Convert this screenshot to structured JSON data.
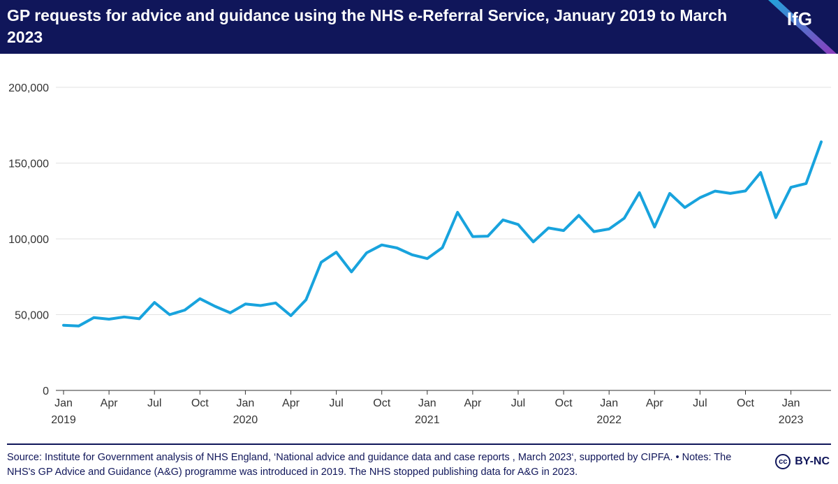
{
  "header": {
    "title": "GP requests for advice and guidance using the NHS e-Referral Service, January 2019 to March 2023",
    "logo": "IfG"
  },
  "chart_data": {
    "type": "line",
    "title": "GP requests for advice and guidance using the NHS e-Referral Service, January 2019 to March 2023",
    "xlabel": "",
    "ylabel": "",
    "ylim": [
      0,
      200000
    ],
    "yticks": [
      0,
      50000,
      100000,
      150000,
      200000
    ],
    "ytick_labels": [
      "0",
      "50,000",
      "100,000",
      "150,000",
      "200,000"
    ],
    "grid": "horizontal",
    "x_tick_labels": [
      {
        "month": "Jan",
        "year": "2019",
        "index": 0
      },
      {
        "month": "Apr",
        "year": "",
        "index": 3
      },
      {
        "month": "Jul",
        "year": "",
        "index": 6
      },
      {
        "month": "Oct",
        "year": "",
        "index": 9
      },
      {
        "month": "Jan",
        "year": "2020",
        "index": 12
      },
      {
        "month": "Apr",
        "year": "",
        "index": 15
      },
      {
        "month": "Jul",
        "year": "",
        "index": 18
      },
      {
        "month": "Oct",
        "year": "",
        "index": 21
      },
      {
        "month": "Jan",
        "year": "2021",
        "index": 24
      },
      {
        "month": "Apr",
        "year": "",
        "index": 27
      },
      {
        "month": "Jul",
        "year": "",
        "index": 30
      },
      {
        "month": "Oct",
        "year": "",
        "index": 33
      },
      {
        "month": "Jan",
        "year": "2022",
        "index": 36
      },
      {
        "month": "Apr",
        "year": "",
        "index": 39
      },
      {
        "month": "Jul",
        "year": "",
        "index": 42
      },
      {
        "month": "Oct",
        "year": "",
        "index": 45
      },
      {
        "month": "Jan",
        "year": "2023",
        "index": 48
      }
    ],
    "x": [
      "2019-01",
      "2019-02",
      "2019-03",
      "2019-04",
      "2019-05",
      "2019-06",
      "2019-07",
      "2019-08",
      "2019-09",
      "2019-10",
      "2019-11",
      "2019-12",
      "2020-01",
      "2020-02",
      "2020-03",
      "2020-04",
      "2020-05",
      "2020-06",
      "2020-07",
      "2020-08",
      "2020-09",
      "2020-10",
      "2020-11",
      "2020-12",
      "2021-01",
      "2021-02",
      "2021-03",
      "2021-04",
      "2021-05",
      "2021-06",
      "2021-07",
      "2021-08",
      "2021-09",
      "2021-10",
      "2021-11",
      "2021-12",
      "2022-01",
      "2022-02",
      "2022-03",
      "2022-04",
      "2022-05",
      "2022-06",
      "2022-07",
      "2022-08",
      "2022-09",
      "2022-10",
      "2022-11",
      "2022-12",
      "2023-01",
      "2023-02",
      "2023-03"
    ],
    "series": [
      {
        "name": "",
        "color": "#18a3dd",
        "values": [
          43000,
          42500,
          48000,
          47000,
          48500,
          47300,
          58000,
          50000,
          53000,
          60500,
          55500,
          51200,
          57000,
          56000,
          57700,
          49300,
          59800,
          84500,
          91200,
          78200,
          90800,
          96000,
          94000,
          89500,
          87000,
          94200,
          117500,
          101500,
          101800,
          112500,
          109500,
          98000,
          107200,
          105500,
          115500,
          104800,
          106500,
          113600,
          130500,
          107800,
          130000,
          120700,
          127200,
          131500,
          130000,
          131600,
          143800,
          114000,
          134000,
          136500,
          164000
        ]
      }
    ]
  },
  "footer": {
    "source": "Source: Institute for Government analysis of NHS England, ‘National advice and guidance data and case reports , March 2023‘, supported by CIPFA. • Notes: The NHS's GP Advice and Guidance (A&G) programme was introduced in 2019. The NHS stopped publishing data for A&G in 2023.",
    "cc_icon_text": "cc",
    "license": "BY-NC"
  },
  "colors": {
    "navy": "#10165a",
    "line": "#18a3dd",
    "grid": "#e2e2e2",
    "axis": "#333333"
  }
}
